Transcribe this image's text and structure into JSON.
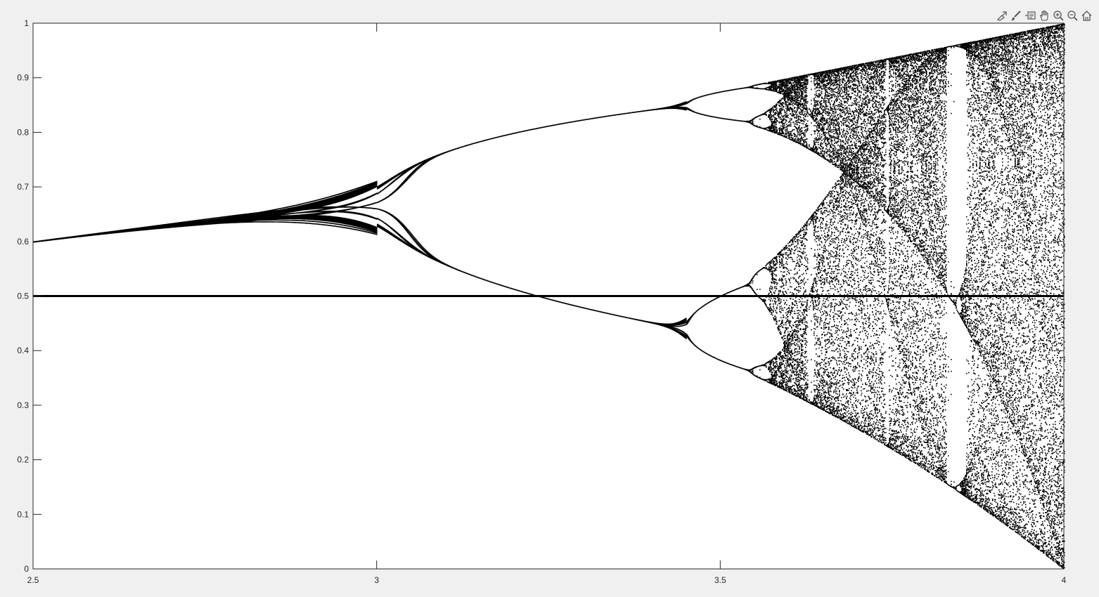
{
  "toolbar": {
    "items": [
      {
        "name": "brush-export-icon"
      },
      {
        "name": "brush-icon"
      },
      {
        "name": "data-tips-icon"
      },
      {
        "name": "pan-icon"
      },
      {
        "name": "zoom-in-icon"
      },
      {
        "name": "zoom-out-icon"
      },
      {
        "name": "home-icon"
      }
    ]
  },
  "chart_data": {
    "type": "scatter",
    "title": "",
    "xlabel": "",
    "ylabel": "",
    "xlim": [
      2.5,
      4
    ],
    "ylim": [
      0,
      1
    ],
    "grid": false,
    "x_ticks": [
      "2.5",
      "3",
      "3.5",
      "4"
    ],
    "y_ticks": [
      "0",
      "0.1",
      "0.2",
      "0.3",
      "0.4",
      "0.5",
      "0.6",
      "0.7",
      "0.8",
      "0.9",
      "1"
    ],
    "x_tick_values": [
      2.5,
      3,
      3.5,
      4
    ],
    "y_tick_values": [
      0,
      0.1,
      0.2,
      0.3,
      0.4,
      0.5,
      0.6,
      0.7,
      0.8,
      0.9,
      1
    ],
    "marker_color": "#000000",
    "series": [
      {
        "values_description_free": true,
        "generator": "logistic-map",
        "r_range": [
          2.5,
          4
        ],
        "reference_line_y": 0.5
      }
    ]
  }
}
